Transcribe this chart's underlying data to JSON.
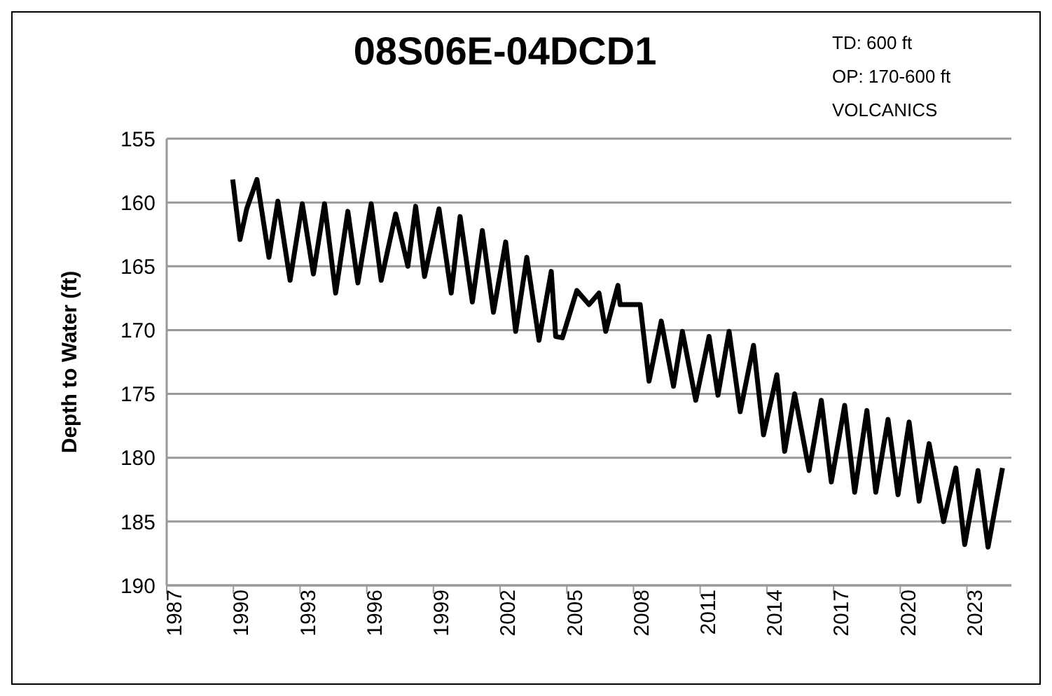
{
  "chart_data": {
    "type": "line",
    "title": "08S06E-04DCD1",
    "ylabel": "Depth to Water (ft)",
    "annotations": [
      "TD: 600 ft",
      "OP: 170-600 ft",
      "VOLCANICS"
    ],
    "xlim": [
      1987,
      2025
    ],
    "xticks": [
      1987,
      1990,
      1993,
      1996,
      1999,
      2002,
      2005,
      2008,
      2011,
      2014,
      2017,
      2020,
      2023
    ],
    "ylim": [
      190,
      155
    ],
    "yticks": [
      155,
      160,
      165,
      170,
      175,
      180,
      185,
      190
    ],
    "grid": "y",
    "legend": false,
    "marker": "none",
    "line_style": "solid",
    "series": [
      {
        "color": "#000000",
        "x": [
          1989.97,
          1990.3,
          1990.6,
          1991.06,
          1991.6,
          1992.0,
          1992.55,
          1993.1,
          1993.6,
          1994.1,
          1994.6,
          1995.15,
          1995.6,
          1996.2,
          1996.65,
          1997.3,
          1997.85,
          1998.2,
          1998.6,
          1999.25,
          1999.8,
          2000.2,
          2000.75,
          2001.2,
          2001.7,
          2002.25,
          2002.7,
          2003.2,
          2003.75,
          2004.3,
          2004.5,
          2004.8,
          2005.45,
          2006.0,
          2006.45,
          2006.75,
          2007.3,
          2007.4,
          2008.3,
          2008.7,
          2009.25,
          2009.8,
          2010.2,
          2010.8,
          2011.4,
          2011.8,
          2012.3,
          2012.8,
          2013.4,
          2013.85,
          2014.45,
          2014.8,
          2015.25,
          2015.9,
          2016.45,
          2016.9,
          2017.5,
          2017.95,
          2018.5,
          2018.9,
          2019.45,
          2019.9,
          2020.4,
          2020.85,
          2021.3,
          2021.95,
          2022.5,
          2022.9,
          2023.5,
          2023.95,
          2024.6
        ],
        "values": [
          158.2,
          162.9,
          160.5,
          158.2,
          164.3,
          159.9,
          166.1,
          160.1,
          165.6,
          160.1,
          167.1,
          160.7,
          166.3,
          160.1,
          166.1,
          160.9,
          165.0,
          160.3,
          165.8,
          160.5,
          167.1,
          161.1,
          167.8,
          162.2,
          168.6,
          163.1,
          170.1,
          164.3,
          170.8,
          165.4,
          170.5,
          170.6,
          166.9,
          168.0,
          167.1,
          170.1,
          166.5,
          168.0,
          168.0,
          174.0,
          169.3,
          174.4,
          170.1,
          175.5,
          170.5,
          175.1,
          170.1,
          176.4,
          171.2,
          178.2,
          173.5,
          179.5,
          175.0,
          181.0,
          175.5,
          181.9,
          175.9,
          182.7,
          176.3,
          182.7,
          177.0,
          182.9,
          177.2,
          183.4,
          178.9,
          185.0,
          180.8,
          186.8,
          181.0,
          187.0,
          180.8
        ]
      }
    ]
  }
}
